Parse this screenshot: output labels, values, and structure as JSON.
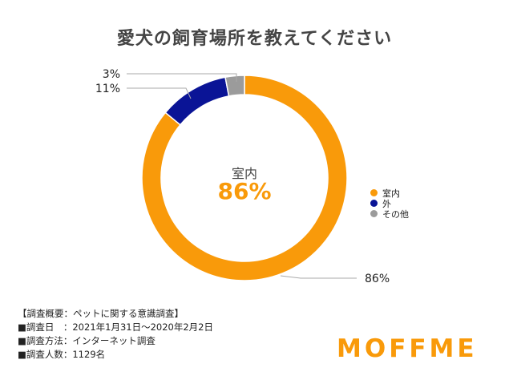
{
  "colors": {
    "orange": "#F99A0A",
    "navy": "#0A1496",
    "gray": "#9B9B9B"
  },
  "chart_data": {
    "type": "pie",
    "variant": "donut",
    "title": "愛犬の飼育場所を教えてください",
    "slices": [
      {
        "label": "室内",
        "value": 86,
        "display": "86%",
        "color": "#F99A0A"
      },
      {
        "label": "外",
        "value": 11,
        "display": "11%",
        "color": "#0A1496"
      },
      {
        "label": "その他",
        "value": 3,
        "display": "3%",
        "color": "#9B9B9B"
      }
    ],
    "legend_position": "right",
    "center": {
      "label": "室内",
      "value": "86%"
    }
  },
  "survey": {
    "summary": "【調査概要：ペットに関する意識調査】",
    "date": "■調査日　：2021年1月31日〜2020年2月2日",
    "method": "■調査方法：インターネット調査",
    "count": "■調査人数：1129名"
  },
  "brand": {
    "logo": "MOFFME"
  }
}
